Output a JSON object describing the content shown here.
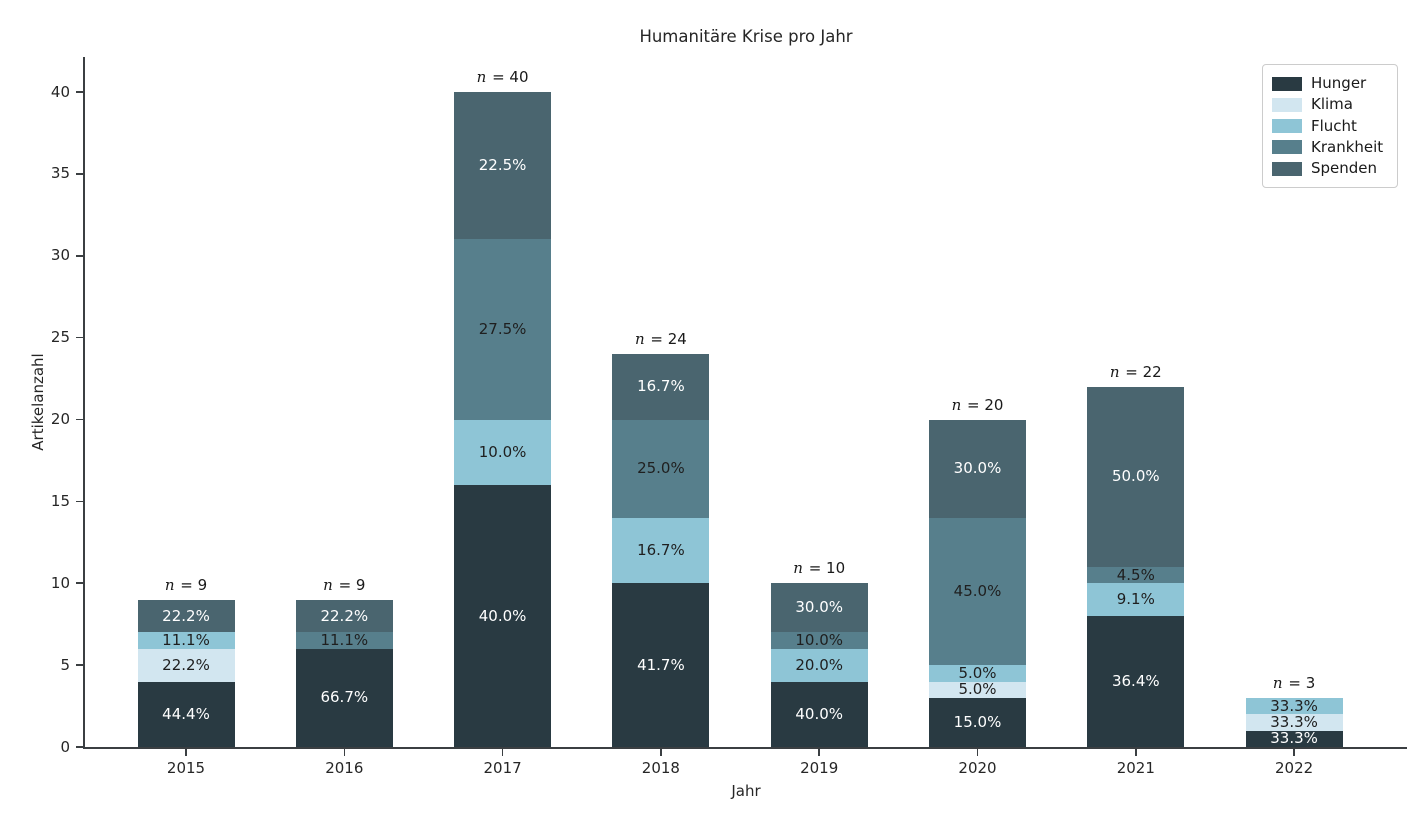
{
  "chart_data": {
    "type": "bar",
    "stacked": true,
    "title": "Humanitäre Krise pro Jahr",
    "xlabel": "Jahr",
    "ylabel": "Artikelanzahl",
    "ylim": [
      0,
      42.2
    ],
    "yticks": [
      0,
      5,
      10,
      15,
      20,
      25,
      30,
      35,
      40
    ],
    "grid": false,
    "categories": [
      "2015",
      "2016",
      "2017",
      "2018",
      "2019",
      "2020",
      "2021",
      "2022"
    ],
    "legend": {
      "position": "upper right",
      "entries": [
        "Hunger",
        "Klima",
        "Flucht",
        "Krankheit",
        "Spenden"
      ]
    },
    "series_colors": {
      "Hunger": "#293a42",
      "Klima": "#d2e6f0",
      "Flucht": "#8ec5d6",
      "Krankheit": "#577f8c",
      "Spenden": "#4a656f"
    },
    "label_text_colors": {
      "Hunger": "#ffffff",
      "Klima": "#1f1f1f",
      "Flucht": "#1f1f1f",
      "Krankheit": "#1f1f1f",
      "Spenden": "#ffffff"
    },
    "bars": [
      {
        "category": "2015",
        "n_label": "n = 9",
        "total": 9,
        "segments": [
          {
            "series": "Hunger",
            "count": 4,
            "pct_label": "44.4%"
          },
          {
            "series": "Klima",
            "count": 2,
            "pct_label": "22.2%"
          },
          {
            "series": "Flucht",
            "count": 1,
            "pct_label": "11.1%"
          },
          {
            "series": "Spenden",
            "count": 2,
            "pct_label": "22.2%"
          }
        ]
      },
      {
        "category": "2016",
        "n_label": "n = 9",
        "total": 9,
        "segments": [
          {
            "series": "Hunger",
            "count": 6,
            "pct_label": "66.7%"
          },
          {
            "series": "Krankheit",
            "count": 1,
            "pct_label": "11.1%"
          },
          {
            "series": "Spenden",
            "count": 2,
            "pct_label": "22.2%"
          }
        ]
      },
      {
        "category": "2017",
        "n_label": "n = 40",
        "total": 40,
        "segments": [
          {
            "series": "Hunger",
            "count": 16,
            "pct_label": "40.0%"
          },
          {
            "series": "Flucht",
            "count": 4,
            "pct_label": "10.0%"
          },
          {
            "series": "Krankheit",
            "count": 11,
            "pct_label": "27.5%"
          },
          {
            "series": "Spenden",
            "count": 9,
            "pct_label": "22.5%"
          }
        ]
      },
      {
        "category": "2018",
        "n_label": "n = 24",
        "total": 24,
        "segments": [
          {
            "series": "Hunger",
            "count": 10,
            "pct_label": "41.7%"
          },
          {
            "series": "Flucht",
            "count": 4,
            "pct_label": "16.7%"
          },
          {
            "series": "Krankheit",
            "count": 6,
            "pct_label": "25.0%"
          },
          {
            "series": "Spenden",
            "count": 4,
            "pct_label": "16.7%"
          }
        ]
      },
      {
        "category": "2019",
        "n_label": "n = 10",
        "total": 10,
        "segments": [
          {
            "series": "Hunger",
            "count": 4,
            "pct_label": "40.0%"
          },
          {
            "series": "Flucht",
            "count": 2,
            "pct_label": "20.0%"
          },
          {
            "series": "Krankheit",
            "count": 1,
            "pct_label": "10.0%"
          },
          {
            "series": "Spenden",
            "count": 3,
            "pct_label": "30.0%"
          }
        ]
      },
      {
        "category": "2020",
        "n_label": "n = 20",
        "total": 20,
        "segments": [
          {
            "series": "Hunger",
            "count": 3,
            "pct_label": "15.0%"
          },
          {
            "series": "Klima",
            "count": 1,
            "pct_label": "5.0%"
          },
          {
            "series": "Flucht",
            "count": 1,
            "pct_label": "5.0%"
          },
          {
            "series": "Krankheit",
            "count": 9,
            "pct_label": "45.0%"
          },
          {
            "series": "Spenden",
            "count": 6,
            "pct_label": "30.0%"
          }
        ]
      },
      {
        "category": "2021",
        "n_label": "n = 22",
        "total": 22,
        "segments": [
          {
            "series": "Hunger",
            "count": 8,
            "pct_label": "36.4%"
          },
          {
            "series": "Flucht",
            "count": 2,
            "pct_label": "9.1%"
          },
          {
            "series": "Krankheit",
            "count": 1,
            "pct_label": "4.5%"
          },
          {
            "series": "Spenden",
            "count": 11,
            "pct_label": "50.0%"
          }
        ]
      },
      {
        "category": "2022",
        "n_label": "n = 3",
        "total": 3,
        "segments": [
          {
            "series": "Hunger",
            "count": 1,
            "pct_label": "33.3%"
          },
          {
            "series": "Klima",
            "count": 1,
            "pct_label": "33.3%"
          },
          {
            "series": "Flucht",
            "count": 1,
            "pct_label": "33.3%"
          }
        ]
      }
    ]
  }
}
